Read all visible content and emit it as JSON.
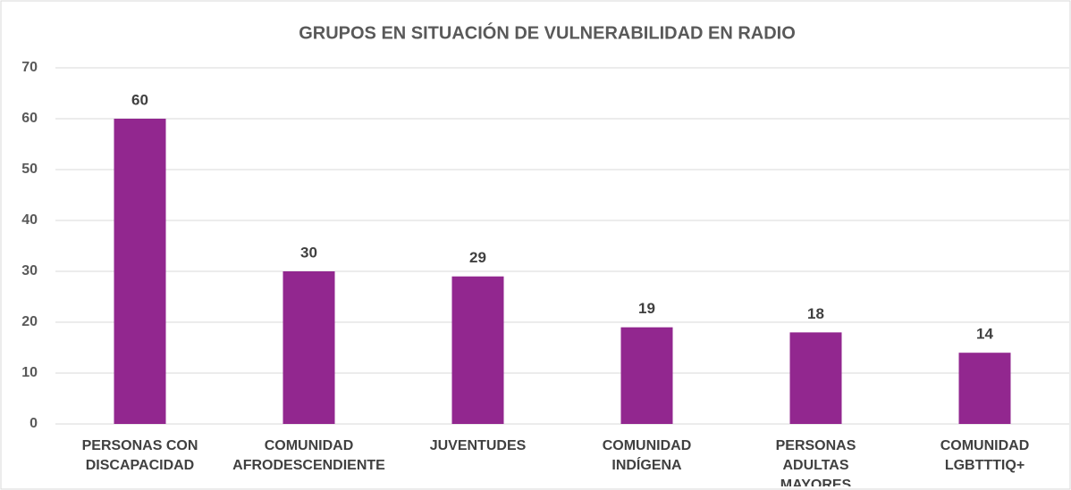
{
  "chart_data": {
    "type": "bar",
    "title": "GRUPOS EN SITUACIÓN DE VULNERABILIDAD EN RADIO",
    "categories": [
      "PERSONAS CON DISCAPACIDAD",
      "COMUNIDAD AFRODESCENDIENTE",
      "JUVENTUDES",
      "COMUNIDAD INDÍGENA",
      "PERSONAS ADULTAS MAYORES",
      "COMUNIDAD LGBTTTIQ+"
    ],
    "values": [
      60,
      30,
      29,
      19,
      18,
      14
    ],
    "color": "#92278f",
    "ylim": [
      0,
      70
    ],
    "yticks": [
      0,
      10,
      20,
      30,
      40,
      50,
      60,
      70
    ],
    "grid": true
  }
}
